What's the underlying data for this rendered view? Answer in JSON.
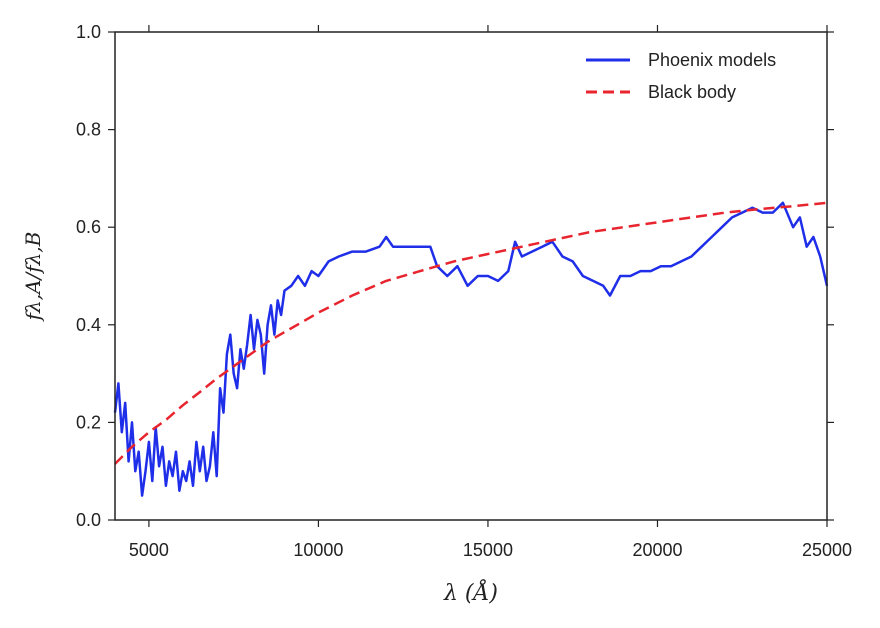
{
  "chart_data": {
    "type": "line",
    "title": "",
    "xlabel": "λ (Å)",
    "ylabel": "fλ,A/fλ,B",
    "xlim": [
      4000,
      25000
    ],
    "ylim": [
      0.0,
      1.0
    ],
    "xticks": [
      5000,
      10000,
      15000,
      20000,
      25000
    ],
    "yticks": [
      0.0,
      0.2,
      0.4,
      0.6,
      0.8,
      1.0
    ],
    "xtick_labels": [
      "5000",
      "10000",
      "15000",
      "20000",
      "25000"
    ],
    "ytick_labels": [
      "0.0",
      "0.2",
      "0.4",
      "0.6",
      "0.8",
      "1.0"
    ],
    "grid": false,
    "legend_position": "top-right",
    "series": [
      {
        "name": "Phoenix models",
        "style": "solid",
        "color": "#1f2ee8",
        "x": [
          4000,
          4100,
          4200,
          4300,
          4400,
          4500,
          4600,
          4700,
          4800,
          4900,
          5000,
          5100,
          5200,
          5300,
          5400,
          5500,
          5600,
          5700,
          5800,
          5900,
          6000,
          6100,
          6200,
          6300,
          6400,
          6500,
          6600,
          6700,
          6800,
          6900,
          7000,
          7100,
          7200,
          7300,
          7400,
          7500,
          7600,
          7700,
          7800,
          7900,
          8000,
          8100,
          8200,
          8300,
          8400,
          8500,
          8600,
          8700,
          8800,
          8900,
          9000,
          9200,
          9400,
          9600,
          9800,
          10000,
          10300,
          10600,
          11000,
          11400,
          11800,
          12000,
          12200,
          12600,
          13000,
          13300,
          13500,
          13800,
          14100,
          14400,
          14700,
          15000,
          15300,
          15600,
          15800,
          16000,
          16300,
          16600,
          16900,
          17200,
          17500,
          17800,
          18100,
          18400,
          18600,
          18900,
          19200,
          19500,
          19800,
          20100,
          20400,
          20700,
          21000,
          21300,
          21600,
          21900,
          22200,
          22500,
          22800,
          23100,
          23400,
          23700,
          24000,
          24200,
          24400,
          24600,
          24800,
          25000
        ],
        "y": [
          0.22,
          0.28,
          0.18,
          0.24,
          0.12,
          0.2,
          0.1,
          0.14,
          0.05,
          0.1,
          0.16,
          0.08,
          0.19,
          0.11,
          0.15,
          0.07,
          0.12,
          0.09,
          0.14,
          0.06,
          0.1,
          0.08,
          0.12,
          0.07,
          0.16,
          0.1,
          0.15,
          0.08,
          0.11,
          0.18,
          0.09,
          0.27,
          0.22,
          0.34,
          0.38,
          0.3,
          0.27,
          0.35,
          0.31,
          0.36,
          0.42,
          0.35,
          0.41,
          0.38,
          0.3,
          0.4,
          0.44,
          0.38,
          0.45,
          0.42,
          0.47,
          0.48,
          0.5,
          0.48,
          0.51,
          0.5,
          0.53,
          0.54,
          0.55,
          0.55,
          0.56,
          0.58,
          0.56,
          0.56,
          0.56,
          0.56,
          0.52,
          0.5,
          0.52,
          0.48,
          0.5,
          0.5,
          0.49,
          0.51,
          0.57,
          0.54,
          0.55,
          0.56,
          0.57,
          0.54,
          0.53,
          0.5,
          0.49,
          0.48,
          0.46,
          0.5,
          0.5,
          0.51,
          0.51,
          0.52,
          0.52,
          0.53,
          0.54,
          0.56,
          0.58,
          0.6,
          0.62,
          0.63,
          0.64,
          0.63,
          0.63,
          0.65,
          0.6,
          0.62,
          0.56,
          0.58,
          0.54,
          0.48
        ]
      },
      {
        "name": "Black body",
        "style": "dashed",
        "color": "#e8242e",
        "x": [
          4000,
          4500,
          5000,
          5500,
          6000,
          6500,
          7000,
          7500,
          8000,
          8500,
          9000,
          9500,
          10000,
          11000,
          12000,
          13000,
          14000,
          15000,
          16000,
          17000,
          18000,
          19000,
          20000,
          21000,
          22000,
          23000,
          24000,
          25000
        ],
        "y": [
          0.115,
          0.15,
          0.18,
          0.205,
          0.235,
          0.262,
          0.29,
          0.315,
          0.34,
          0.365,
          0.385,
          0.405,
          0.425,
          0.46,
          0.49,
          0.51,
          0.53,
          0.545,
          0.56,
          0.575,
          0.59,
          0.6,
          0.61,
          0.62,
          0.63,
          0.637,
          0.643,
          0.65
        ]
      }
    ]
  }
}
